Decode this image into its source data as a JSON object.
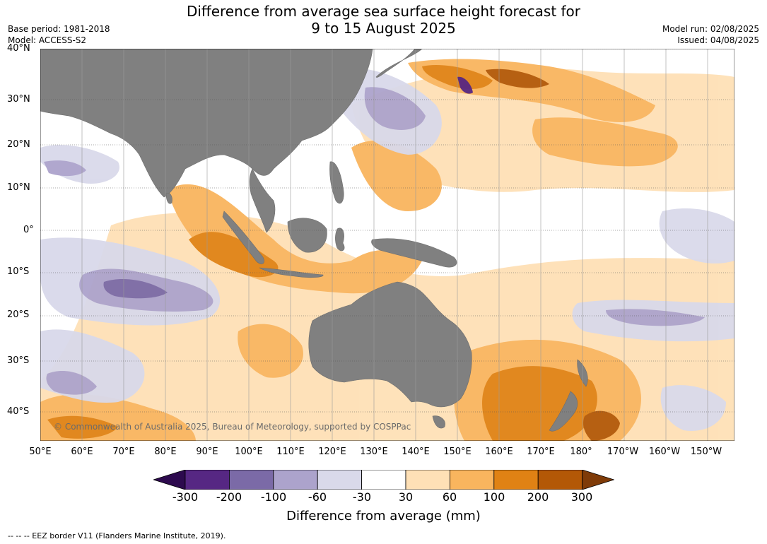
{
  "title": {
    "line1": "Difference from average sea surface height forecast for",
    "line2": "9 to 15 August 2025"
  },
  "meta": {
    "base_period": "Base period: 1981-2018",
    "model": "Model: ACCESS-S2",
    "model_run": "Model run: 02/08/2025",
    "issued": "Issued: 04/08/2025"
  },
  "lat_labels": [
    "40°N",
    "30°N",
    "20°N",
    "10°N",
    "0°",
    "10°S",
    "20°S",
    "30°S",
    "40°S"
  ],
  "lon_labels": [
    "50°E",
    "60°E",
    "70°E",
    "80°E",
    "90°E",
    "100°E",
    "110°E",
    "120°E",
    "130°E",
    "140°E",
    "150°E",
    "160°E",
    "170°E",
    "180°",
    "170°W",
    "160°W",
    "150°W"
  ],
  "colorbar": {
    "ticks": [
      "-300",
      "-200",
      "-100",
      "-60",
      "-30",
      "30",
      "60",
      "100",
      "200",
      "300"
    ],
    "colors": [
      "#2d0a4e",
      "#562783",
      "#7b6aa7",
      "#aca3cc",
      "#d9d9ea",
      "#ffffff",
      "#fee0b6",
      "#f9b55e",
      "#e08214",
      "#b35806",
      "#7f3b08"
    ],
    "title": "Difference from average (mm)"
  },
  "copyright": "© Commonwealth of Australia 2025, Bureau of Meteorology, supported by COSPPac",
  "footnote": "--  --  -- EEZ border V11 (Flanders Marine Institute, 2019).",
  "palette": {
    "land": "#808080",
    "grid": "#555555"
  }
}
